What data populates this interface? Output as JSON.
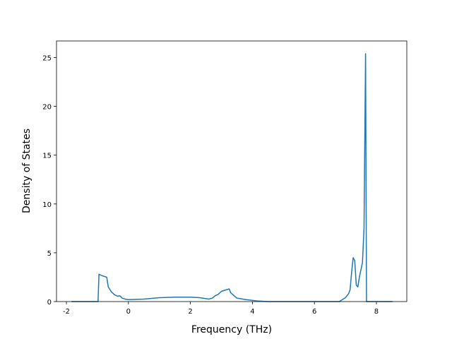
{
  "chart_data": {
    "type": "line",
    "xlabel": "Frequency (THz)",
    "ylabel": "Density of States",
    "xlim": [
      -2.32,
      8.98
    ],
    "ylim": [
      0,
      26.7
    ],
    "xticks": [
      -2,
      0,
      2,
      4,
      6,
      8
    ],
    "yticks": [
      0,
      5,
      10,
      15,
      20,
      25
    ],
    "series": [
      {
        "color": "#1f77b4",
        "x": [
          -1.84,
          -0.98,
          -0.95,
          -0.85,
          -0.7,
          -0.65,
          -0.55,
          -0.45,
          -0.35,
          -0.28,
          -0.2,
          -0.1,
          0.0,
          0.5,
          1.0,
          1.5,
          2.0,
          2.3,
          2.5,
          2.6,
          2.7,
          2.8,
          2.9,
          3.0,
          3.1,
          3.2,
          3.25,
          3.3,
          3.5,
          3.8,
          4.2,
          4.5,
          6.8,
          7.0,
          7.1,
          7.15,
          7.2,
          7.25,
          7.3,
          7.35,
          7.4,
          7.45,
          7.55,
          7.6,
          7.65,
          7.68,
          8.52
        ],
        "values": [
          0,
          0,
          2.8,
          2.65,
          2.5,
          1.5,
          1.0,
          0.7,
          0.55,
          0.6,
          0.35,
          0.25,
          0.2,
          0.25,
          0.4,
          0.45,
          0.45,
          0.4,
          0.3,
          0.25,
          0.35,
          0.6,
          0.75,
          1.05,
          1.15,
          1.25,
          1.3,
          0.9,
          0.35,
          0.2,
          0.05,
          0,
          0,
          0.4,
          0.8,
          1.2,
          3.0,
          4.5,
          4.2,
          1.7,
          1.5,
          2.5,
          4.0,
          7.5,
          25.4,
          0,
          0
        ]
      }
    ]
  }
}
